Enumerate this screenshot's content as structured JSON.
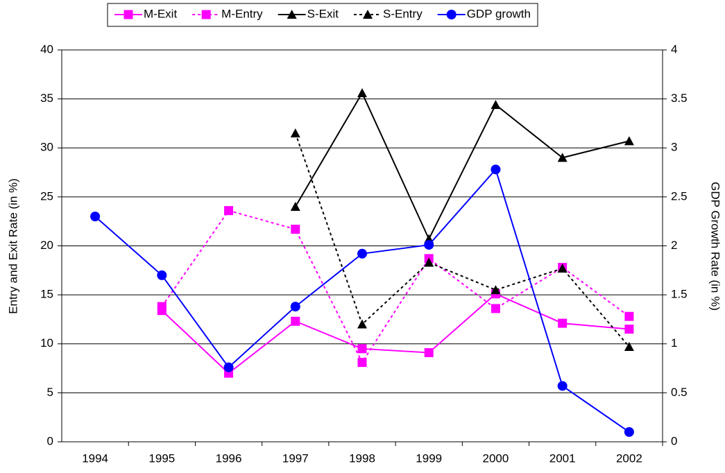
{
  "chart_data": {
    "type": "line",
    "y_label": "Entry and Exit Rate (in %)",
    "y2_label": "GDP Growth Rate (in %)",
    "categories": [
      "1994",
      "1995",
      "1996",
      "1997",
      "1998",
      "1999",
      "2000",
      "2001",
      "2002"
    ],
    "ylim": [
      0,
      40
    ],
    "yticks": [
      0,
      5,
      10,
      15,
      20,
      25,
      30,
      35,
      40
    ],
    "y2lim": [
      0,
      4
    ],
    "y2ticks": [
      0,
      0.5,
      1,
      1.5,
      2,
      2.5,
      3,
      3.5,
      4
    ],
    "grid": true,
    "legend": "top",
    "series": [
      {
        "name": "M-Exit",
        "color": "#ff00ff",
        "line_style": "solid",
        "marker": "square",
        "values": [
          null,
          13.4,
          7.0,
          12.3,
          9.5,
          9.1,
          15.1,
          12.1,
          11.5
        ]
      },
      {
        "name": "M-Entry",
        "color": "#ff00ff",
        "line_style": "dashed",
        "marker": "square",
        "values": [
          null,
          13.8,
          23.6,
          21.7,
          8.1,
          18.7,
          13.6,
          17.8,
          12.8
        ]
      },
      {
        "name": "S-Exit",
        "color": "#000000",
        "line_style": "solid",
        "marker": "triangle",
        "values": [
          null,
          null,
          null,
          24.0,
          35.6,
          20.7,
          34.4,
          29.0,
          30.7
        ]
      },
      {
        "name": "S-Entry",
        "color": "#000000",
        "line_style": "dashed",
        "marker": "triangle",
        "values": [
          null,
          null,
          null,
          31.5,
          12.0,
          18.3,
          15.5,
          17.7,
          9.7
        ]
      },
      {
        "name": "GDP growth",
        "color": "#0000ff",
        "line_style": "solid",
        "marker": "circle",
        "axis": "y2",
        "values": [
          2.3,
          1.7,
          0.76,
          1.38,
          1.92,
          2.01,
          2.78,
          0.57,
          0.1
        ]
      }
    ]
  }
}
